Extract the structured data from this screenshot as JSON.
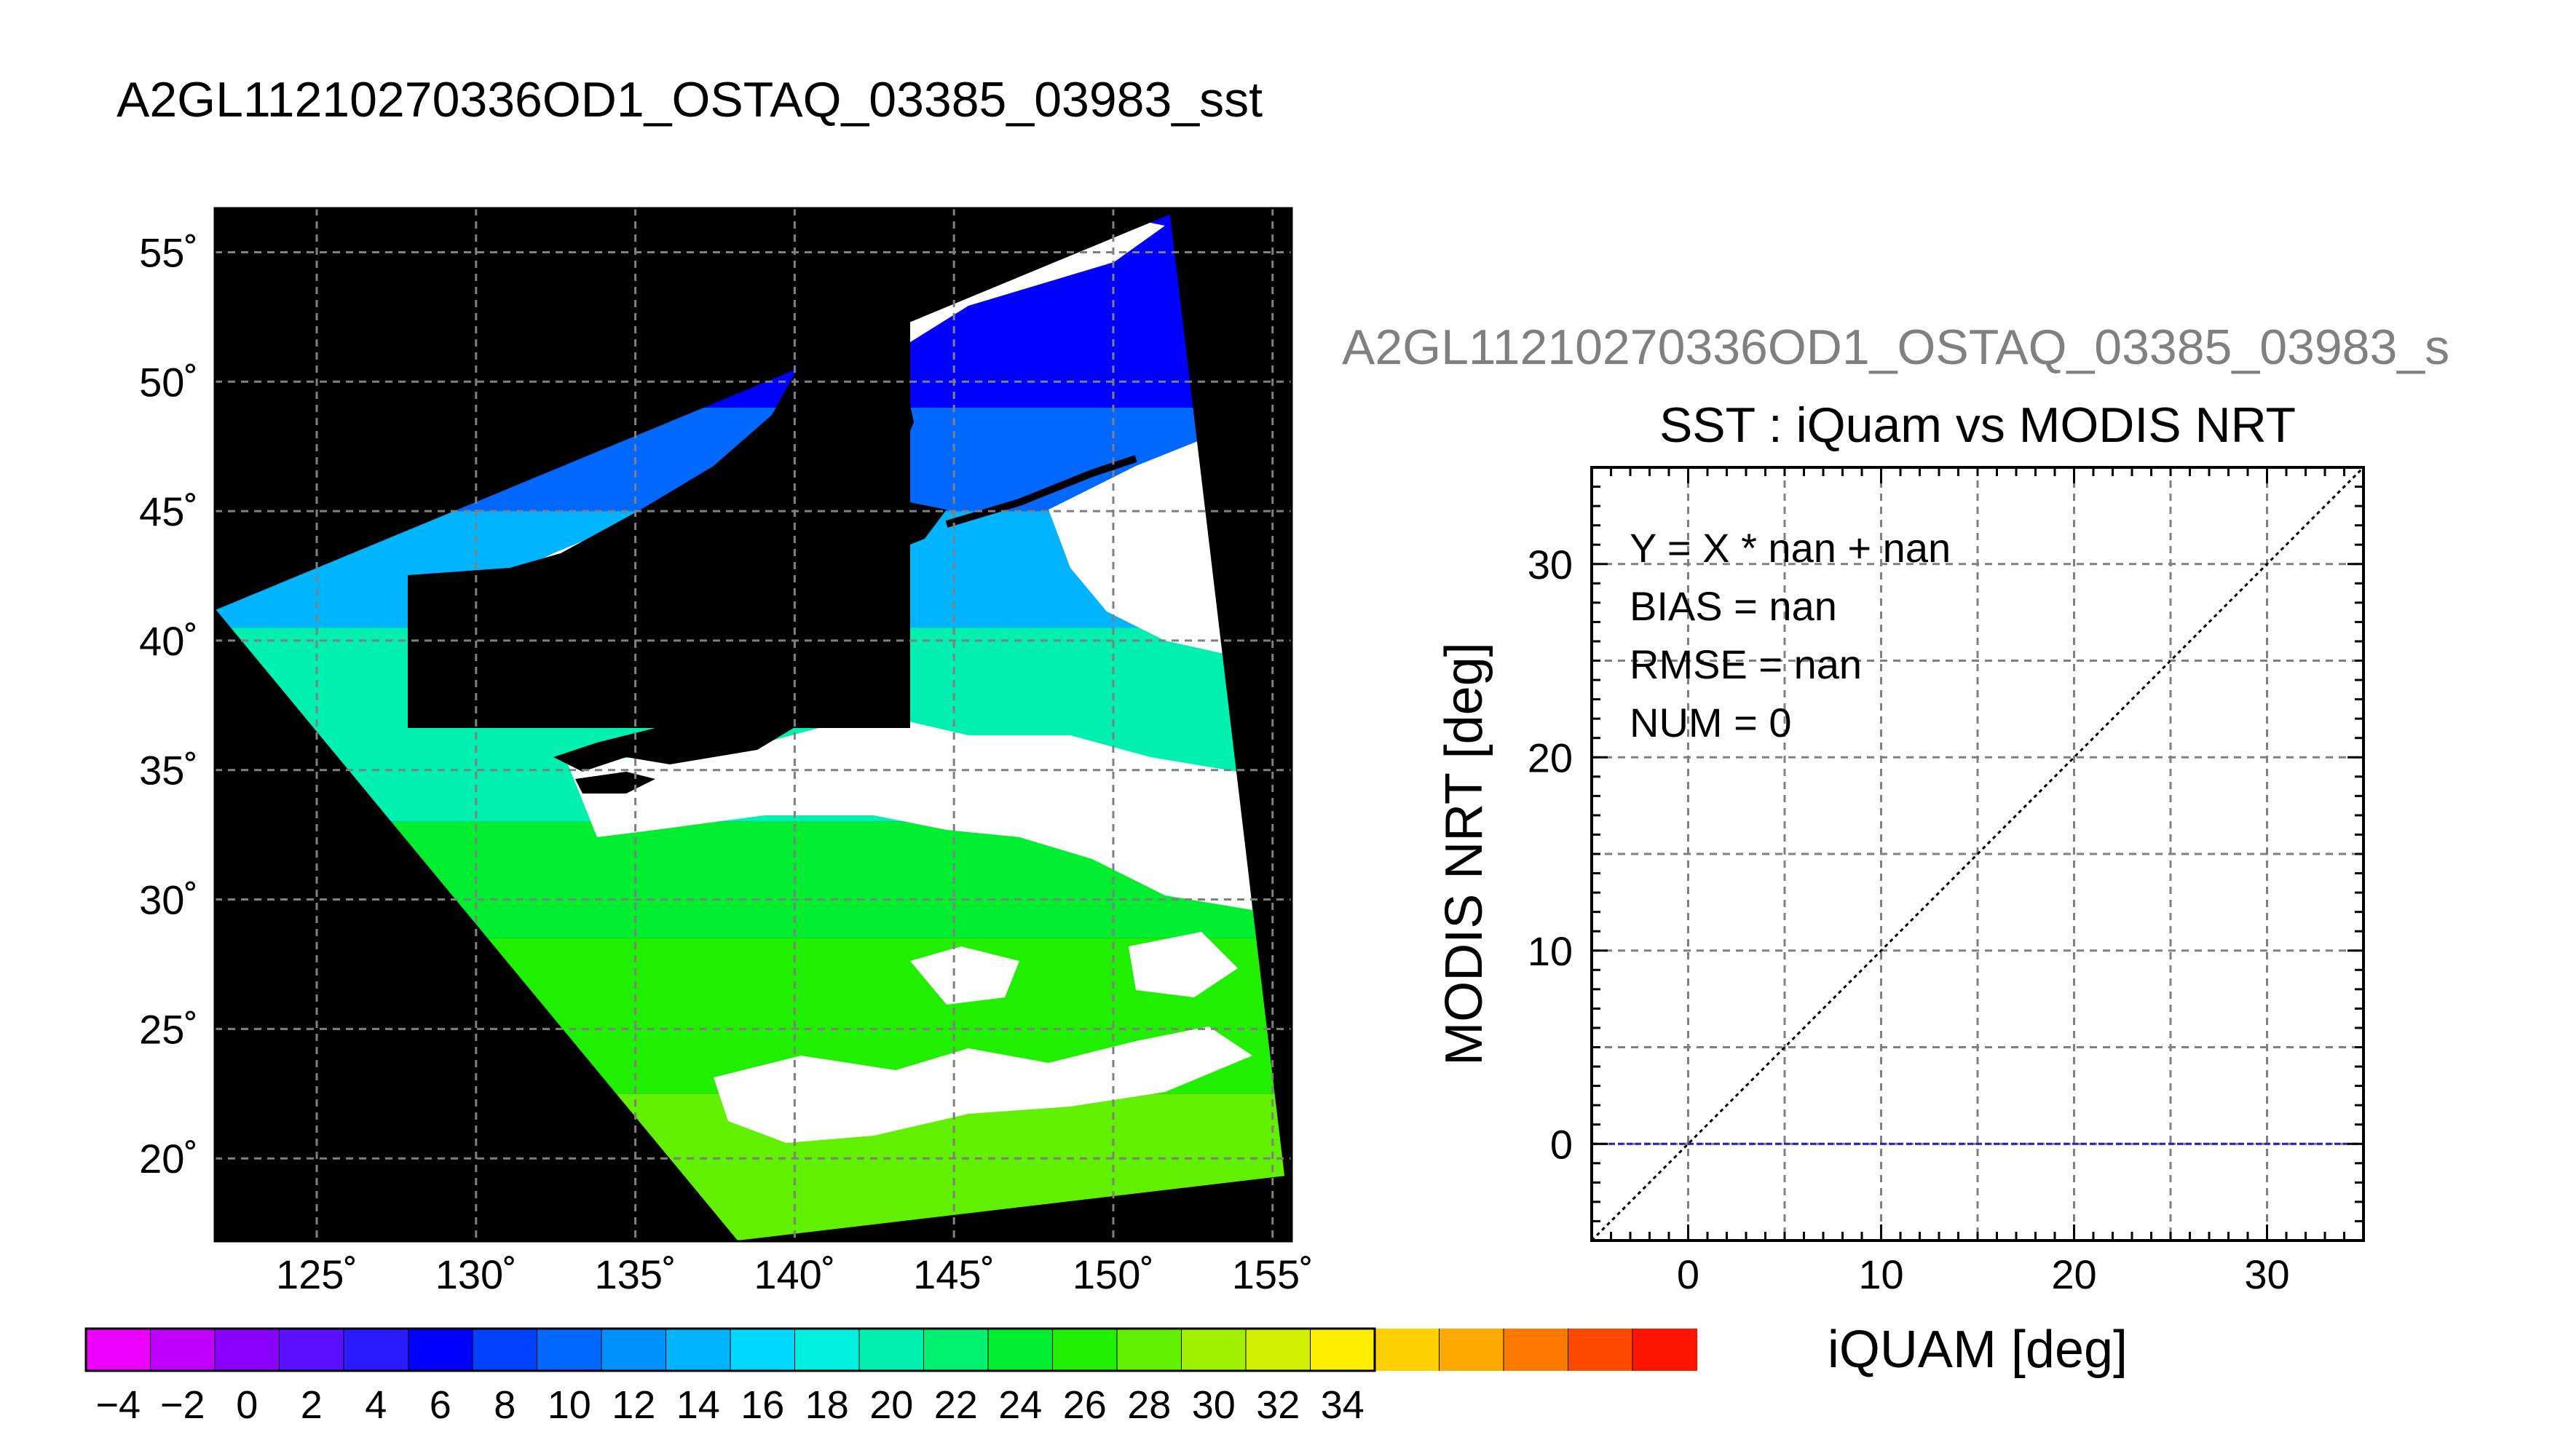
{
  "page_title": "A2GL11210270336OD1_OSTAQ_03385_03983_sst",
  "chart_data": [
    {
      "type": "heatmap",
      "title": "A2GL11210270336OD1_OSTAQ_03385_03983_sst",
      "xlabel": "",
      "ylabel": "",
      "x_ticks": [
        125,
        130,
        135,
        140,
        145,
        150,
        155
      ],
      "x_tick_labels": [
        "125˚",
        "130˚",
        "135˚",
        "140˚",
        "145˚",
        "150˚",
        "155˚"
      ],
      "y_ticks": [
        55,
        50,
        45,
        40,
        35,
        30,
        25,
        20
      ],
      "y_tick_labels": [
        "55˚",
        "50˚",
        "45˚",
        "40˚",
        "35˚",
        "30˚",
        "25˚",
        "20˚"
      ],
      "xlim": [
        121.8,
        155.6
      ],
      "ylim": [
        16.8,
        56.7
      ],
      "grid": true,
      "swath_corners_lonlat": [
        [
          138.2,
          16.8
        ],
        [
          155.4,
          19.3
        ],
        [
          151.8,
          56.5
        ],
        [
          121.8,
          41.2
        ]
      ],
      "colorbar": {
        "vmin": -5,
        "vmax": 35,
        "step": 2,
        "tick_labels": [
          "−4",
          "−2",
          "0",
          "2",
          "4",
          "6",
          "8",
          "10",
          "12",
          "14",
          "16",
          "18",
          "20",
          "22",
          "24",
          "26",
          "28",
          "30",
          "32",
          "34"
        ],
        "colors": [
          "#ee00ff",
          "#c000ff",
          "#8a00ff",
          "#5a10ff",
          "#2a1aff",
          "#0000ff",
          "#0040ff",
          "#0068ff",
          "#0090ff",
          "#00b4ff",
          "#00d8ff",
          "#00f0e0",
          "#00f0b0",
          "#00f070",
          "#00ee30",
          "#20f000",
          "#60f000",
          "#a0f000",
          "#d0f000",
          "#ffee00",
          "#ffd000",
          "#ffa800",
          "#ff7a00",
          "#ff4800",
          "#ff1400"
        ]
      },
      "sst_bands": [
        {
          "lat_min": 16.8,
          "lat_max": 22.5,
          "value_c": 28.0
        },
        {
          "lat_min": 22.5,
          "lat_max": 28.5,
          "value_c": 26.0
        },
        {
          "lat_min": 28.5,
          "lat_max": 33.0,
          "value_c": 23.0
        },
        {
          "lat_min": 33.0,
          "lat_max": 40.5,
          "value_c": 19.0
        },
        {
          "lat_min": 40.5,
          "lat_max": 45.0,
          "value_c": 13.0
        },
        {
          "lat_min": 45.0,
          "lat_max": 49.0,
          "value_c": 9.0
        },
        {
          "lat_min": 49.0,
          "lat_max": 56.7,
          "value_c": 6.0
        }
      ]
    },
    {
      "type": "scatter",
      "title": "SST : iQuam vs MODIS NRT",
      "xlabel": "iQUAM [deg]",
      "ylabel": "MODIS NRT [deg]",
      "xlim": [
        -5,
        35
      ],
      "ylim": [
        -5,
        35
      ],
      "x_ticks": [
        0,
        10,
        20,
        30
      ],
      "y_ticks": [
        0,
        10,
        20,
        30
      ],
      "grid": true,
      "points": [],
      "reference_lines": [
        {
          "name": "Y = X",
          "slope": 1,
          "intercept": 0,
          "color": "#000000",
          "style": "dotted"
        },
        {
          "name": "Y = 0",
          "slope": 0,
          "intercept": 0,
          "color": "#2020c0",
          "style": "dashed"
        }
      ],
      "stats": [
        "Y = X * nan + nan",
        "BIAS = nan",
        "RMSE = nan",
        "NUM = 0"
      ]
    }
  ],
  "scatter_header": "A2GL11210270336OD1_OSTAQ_03385_03983_s"
}
